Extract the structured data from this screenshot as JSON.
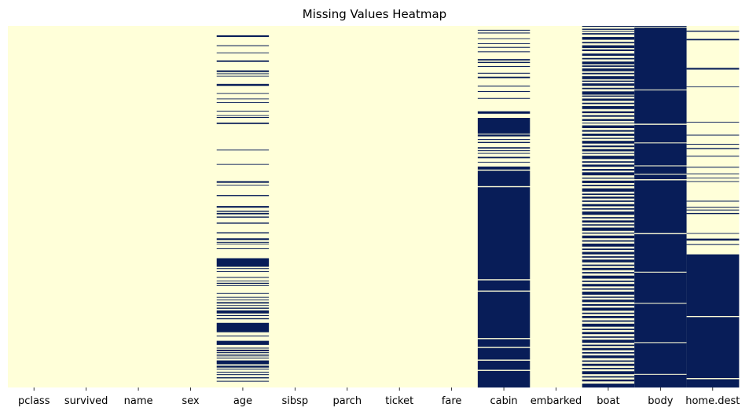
{
  "chart_data": {
    "type": "heatmap",
    "title": "Missing Values Heatmap",
    "xlabel": "",
    "ylabel": "",
    "columns": [
      "pclass",
      "survived",
      "name",
      "sex",
      "age",
      "sibsp",
      "parch",
      "ticket",
      "fare",
      "cabin",
      "embarked",
      "boat",
      "body",
      "home.dest"
    ],
    "n_rows": 1309,
    "colors": {
      "present": "#ffffd9",
      "missing": "#081d58",
      "divider": "#ffffff"
    },
    "y_ticks_visible": false,
    "missing_runs": {
      "pclass": [],
      "survived": [],
      "name": [],
      "sex": [],
      "age": [
        [
          34,
          40
        ],
        [
          70,
          73
        ],
        [
          96,
          98
        ],
        [
          125,
          130
        ],
        [
          161,
          167
        ],
        [
          172,
          174
        ],
        [
          181,
          183
        ],
        [
          210,
          217
        ],
        [
          243,
          245
        ],
        [
          263,
          265
        ],
        [
          276,
          278
        ],
        [
          307,
          309
        ],
        [
          323,
          325
        ],
        [
          330,
          333
        ],
        [
          350,
          355
        ],
        [
          448,
          450
        ],
        [
          500,
          502
        ],
        [
          562,
          568
        ],
        [
          575,
          577
        ],
        [
          612,
          616
        ],
        [
          652,
          658
        ],
        [
          669,
          673
        ],
        [
          677,
          682
        ],
        [
          690,
          694
        ],
        [
          712,
          716
        ],
        [
          747,
          751
        ],
        [
          769,
          775
        ],
        [
          782,
          785
        ],
        [
          788,
          790
        ],
        [
          805,
          808
        ],
        [
          841,
          872
        ],
        [
          877,
          880
        ],
        [
          888,
          890
        ],
        [
          909,
          912
        ],
        [
          922,
          924
        ],
        [
          930,
          934
        ],
        [
          939,
          941
        ],
        [
          967,
          969
        ],
        [
          981,
          983
        ],
        [
          991,
          993
        ],
        [
          1000,
          1005
        ],
        [
          1011,
          1013
        ],
        [
          1020,
          1024
        ],
        [
          1030,
          1041
        ],
        [
          1047,
          1050
        ],
        [
          1058,
          1062
        ],
        [
          1075,
          1109
        ],
        [
          1121,
          1124
        ],
        [
          1140,
          1155
        ],
        [
          1165,
          1168
        ],
        [
          1172,
          1178
        ],
        [
          1181,
          1183
        ],
        [
          1187,
          1189
        ],
        [
          1193,
          1196
        ],
        [
          1201,
          1204
        ],
        [
          1211,
          1225
        ],
        [
          1230,
          1237
        ],
        [
          1241,
          1244
        ],
        [
          1252,
          1255
        ],
        [
          1261,
          1264
        ],
        [
          1272,
          1276
        ],
        [
          1285,
          1288
        ]
      ],
      "cabin": [
        [
          14,
          17
        ],
        [
          24,
          27
        ],
        [
          45,
          47
        ],
        [
          63,
          65
        ],
        [
          76,
          79
        ],
        [
          92,
          95
        ],
        [
          120,
          125
        ],
        [
          130,
          134
        ],
        [
          145,
          148
        ],
        [
          170,
          173
        ],
        [
          184,
          189
        ],
        [
          216,
          219
        ],
        [
          236,
          239
        ],
        [
          261,
          264
        ],
        [
          309,
          318
        ],
        [
          333,
          390
        ],
        [
          393,
          400
        ],
        [
          410,
          413
        ],
        [
          420,
          424
        ],
        [
          439,
          444
        ],
        [
          450,
          453
        ],
        [
          460,
          462
        ],
        [
          474,
          479
        ],
        [
          492,
          494
        ],
        [
          509,
          520
        ],
        [
          524,
          580
        ],
        [
          584,
          917
        ],
        [
          921,
          958
        ],
        [
          962,
          1130
        ],
        [
          1134,
          1162
        ],
        [
          1166,
          1208
        ],
        [
          1212,
          1245
        ],
        [
          1249,
          1309
        ]
      ],
      "embarked": [],
      "boat": [
        [
          0,
          3
        ],
        [
          10,
          14
        ],
        [
          18,
          21
        ],
        [
          26,
          31
        ],
        [
          40,
          50
        ],
        [
          58,
          63
        ],
        [
          70,
          80
        ],
        [
          85,
          91
        ],
        [
          100,
          108
        ],
        [
          116,
          121
        ],
        [
          129,
          139
        ],
        [
          143,
          148
        ],
        [
          154,
          164
        ],
        [
          170,
          175
        ],
        [
          182,
          193
        ],
        [
          198,
          202
        ],
        [
          208,
          217
        ],
        [
          224,
          229
        ],
        [
          237,
          249
        ],
        [
          252,
          256
        ],
        [
          263,
          271
        ],
        [
          278,
          283
        ],
        [
          290,
          301
        ],
        [
          309,
          316
        ],
        [
          323,
          329
        ],
        [
          337,
          344
        ],
        [
          350,
          353
        ],
        [
          360,
          370
        ],
        [
          377,
          383
        ],
        [
          390,
          398
        ],
        [
          405,
          409
        ],
        [
          416,
          426
        ],
        [
          433,
          439
        ],
        [
          446,
          454
        ],
        [
          460,
          463
        ],
        [
          470,
          482
        ],
        [
          490,
          495
        ],
        [
          502,
          510
        ],
        [
          518,
          524
        ],
        [
          530,
          541
        ],
        [
          549,
          553
        ],
        [
          560,
          569
        ],
        [
          575,
          580
        ],
        [
          588,
          600
        ],
        [
          607,
          612
        ],
        [
          618,
          625
        ],
        [
          632,
          637
        ],
        [
          645,
          653
        ],
        [
          660,
          665
        ],
        [
          672,
          684
        ],
        [
          692,
          697
        ],
        [
          704,
          712
        ],
        [
          718,
          723
        ],
        [
          730,
          742
        ],
        [
          748,
          752
        ],
        [
          759,
          769
        ],
        [
          776,
          781
        ],
        [
          788,
          799
        ],
        [
          806,
          811
        ],
        [
          818,
          827
        ],
        [
          834,
          839
        ],
        [
          846,
          856
        ],
        [
          864,
          869
        ],
        [
          876,
          884
        ],
        [
          891,
          896
        ],
        [
          904,
          915
        ],
        [
          922,
          927
        ],
        [
          934,
          943
        ],
        [
          950,
          955
        ],
        [
          962,
          973
        ],
        [
          980,
          984
        ],
        [
          991,
          1000
        ],
        [
          1007,
          1013
        ],
        [
          1020,
          1031
        ],
        [
          1038,
          1043
        ],
        [
          1050,
          1058
        ],
        [
          1066,
          1071
        ],
        [
          1078,
          1089
        ],
        [
          1096,
          1101
        ],
        [
          1108,
          1116
        ],
        [
          1124,
          1129
        ],
        [
          1136,
          1147
        ],
        [
          1154,
          1159
        ],
        [
          1166,
          1174
        ],
        [
          1181,
          1186
        ],
        [
          1193,
          1203
        ],
        [
          1211,
          1216
        ],
        [
          1223,
          1231
        ],
        [
          1238,
          1243
        ],
        [
          1250,
          1261
        ],
        [
          1268,
          1273
        ],
        [
          1280,
          1287
        ],
        [
          1295,
          1309
        ]
      ],
      "body": [
        [
          0,
          3
        ],
        [
          6,
          230
        ],
        [
          233,
          354
        ],
        [
          358,
          422
        ],
        [
          425,
          505
        ],
        [
          508,
          535
        ],
        [
          538,
          555
        ],
        [
          559,
          750
        ],
        [
          754,
          890
        ],
        [
          893,
          1003
        ],
        [
          1006,
          1145
        ],
        [
          1148,
          1260
        ],
        [
          1263,
          1309
        ]
      ],
      "home.dest": [
        [
          17,
          21
        ],
        [
          47,
          52
        ],
        [
          152,
          158
        ],
        [
          219,
          221
        ],
        [
          347,
          349
        ],
        [
          394,
          397
        ],
        [
          427,
          430
        ],
        [
          442,
          446
        ],
        [
          470,
          473
        ],
        [
          510,
          513
        ],
        [
          534,
          536
        ],
        [
          549,
          551
        ],
        [
          562,
          564
        ],
        [
          633,
          636
        ],
        [
          655,
          658
        ],
        [
          665,
          668
        ],
        [
          677,
          681
        ],
        [
          750,
          752
        ],
        [
          770,
          777
        ],
        [
          790,
          793
        ],
        [
          827,
          1050
        ],
        [
          1054,
          1275
        ],
        [
          1279,
          1309
        ]
      ]
    }
  }
}
